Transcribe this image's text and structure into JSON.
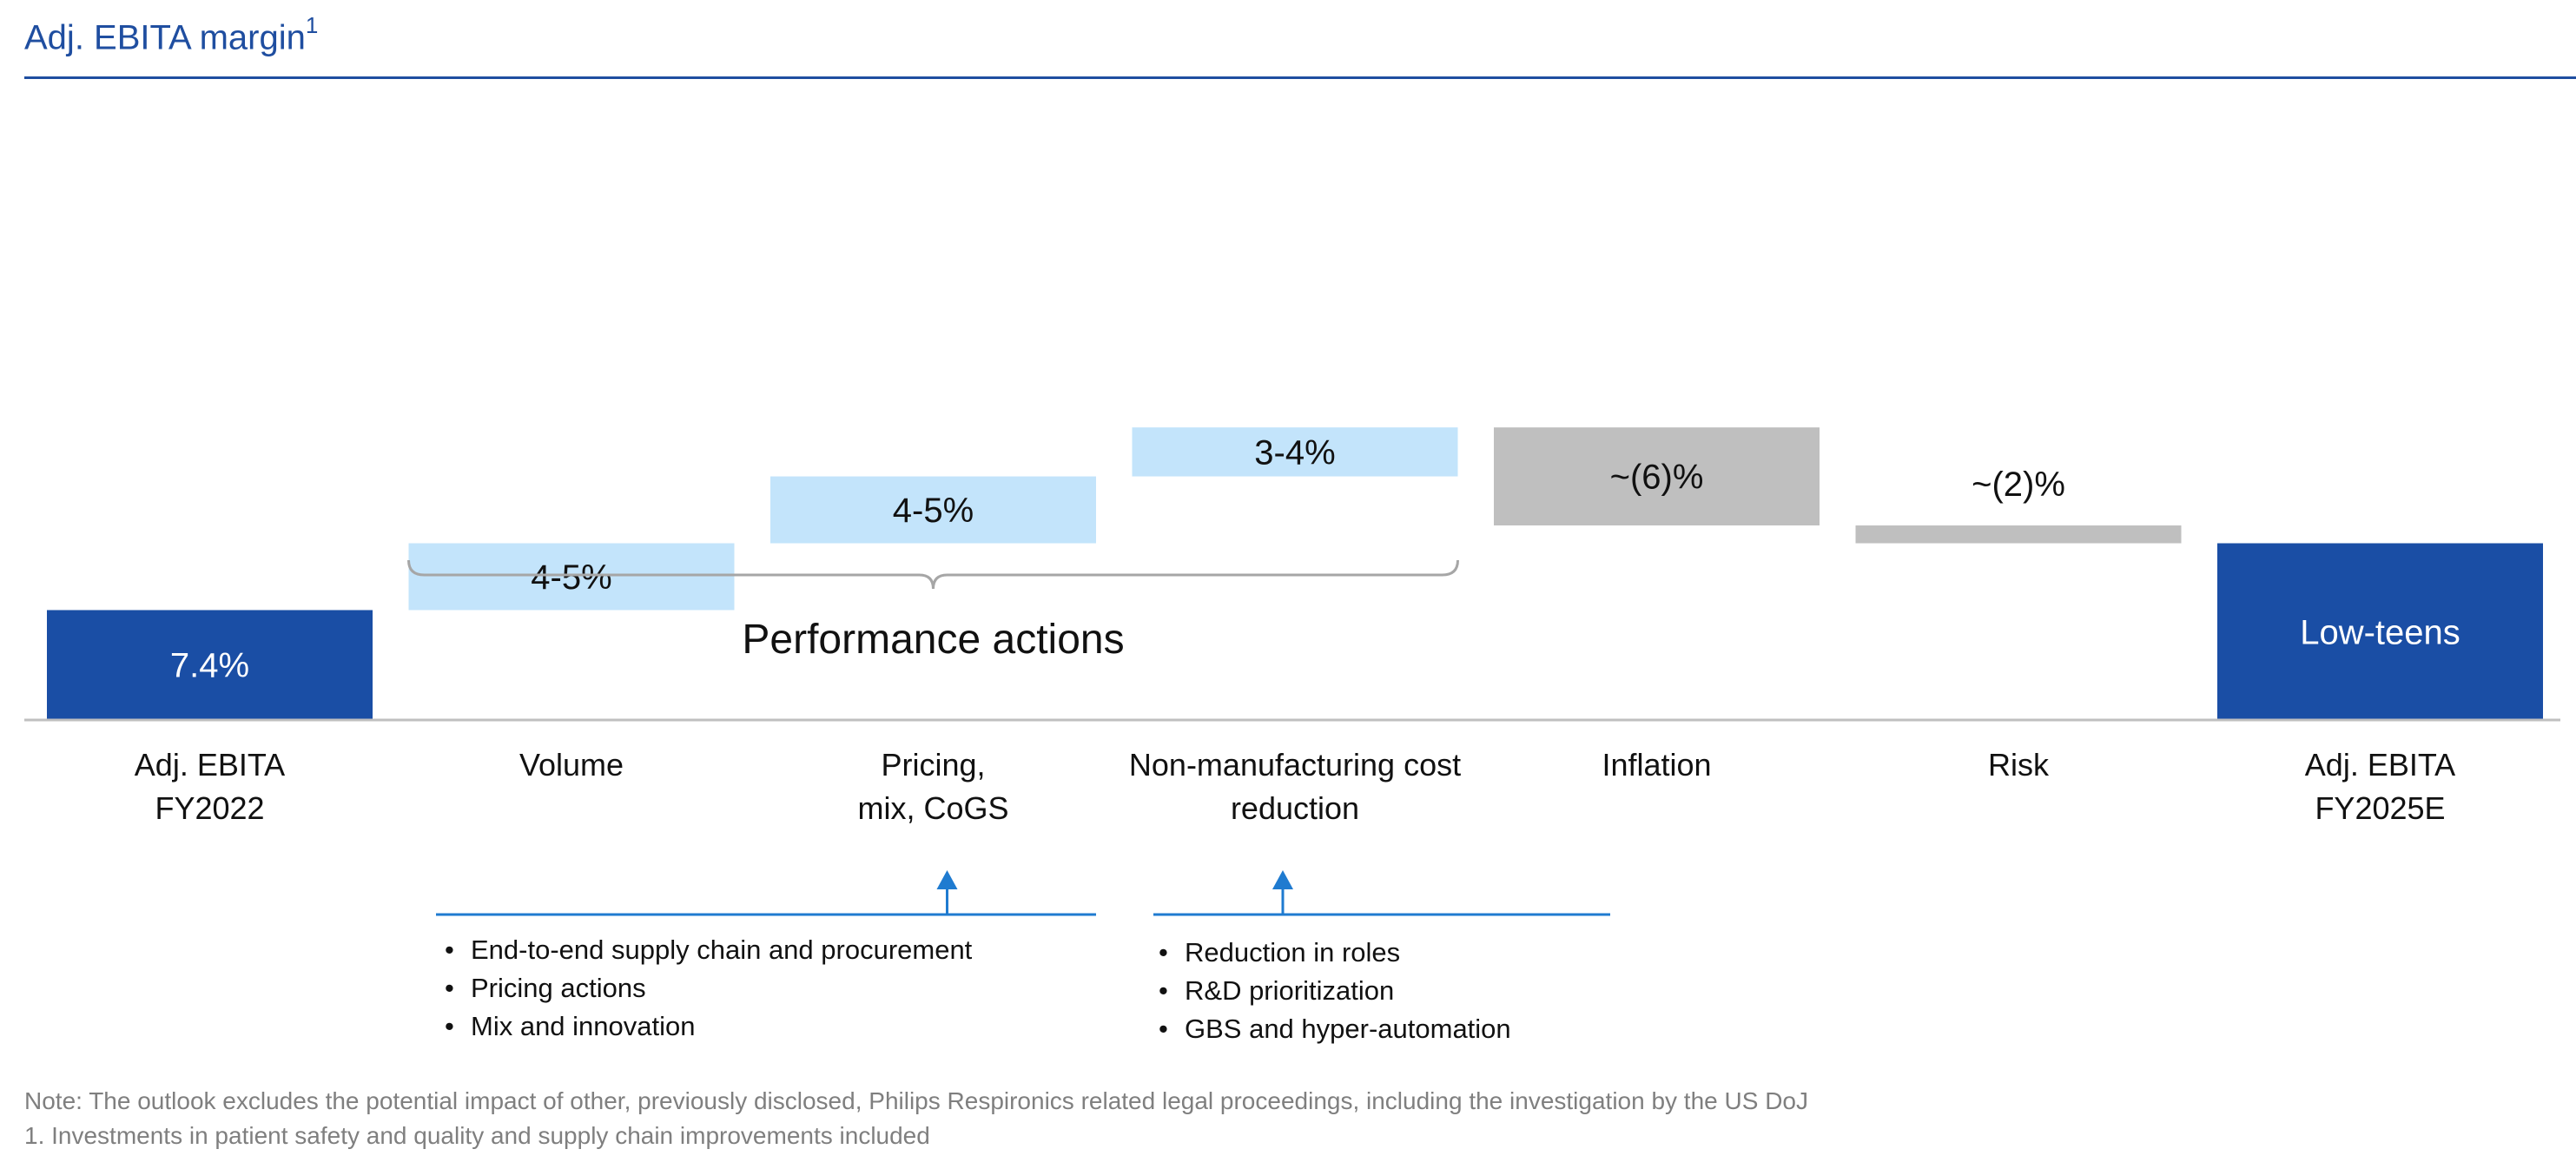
{
  "title": {
    "text": "Adj. EBITA margin",
    "footnote_marker": "1"
  },
  "colors": {
    "title": "#1f4ea0",
    "endpoint_bar": "#1a4ea5",
    "performance_bar": "#c3e4fb",
    "headwind_bar": "#bfbfbf",
    "arrow": "#1f7bd0",
    "axis": "#bfbfbf"
  },
  "chart_data": {
    "type": "bar",
    "subtype": "waterfall",
    "title": "Adj. EBITA margin",
    "categories": [
      [
        "Adj. EBITA",
        "FY2022"
      ],
      [
        "Volume"
      ],
      [
        "Pricing,",
        "mix, CoGS"
      ],
      [
        "Non-manufacturing cost",
        "reduction"
      ],
      [
        "Inflation"
      ],
      [
        "Risk"
      ],
      [
        "Adj. EBITA",
        "FY2025E"
      ]
    ],
    "bars": [
      {
        "kind": "total",
        "start": 0,
        "end": 7.4,
        "label": "7.4%",
        "label_position": "inside"
      },
      {
        "kind": "increase",
        "start": 7.4,
        "end": 11.9,
        "label": "4-5%",
        "label_position": "inside"
      },
      {
        "kind": "increase",
        "start": 11.9,
        "end": 16.4,
        "label": "4-5%",
        "label_position": "inside"
      },
      {
        "kind": "increase",
        "start": 16.4,
        "end": 19.7,
        "label": "3-4%",
        "label_position": "inside"
      },
      {
        "kind": "decrease",
        "start": 19.7,
        "end": 13.1,
        "label": "~(6)%",
        "label_position": "inside"
      },
      {
        "kind": "decrease",
        "start": 13.1,
        "end": 11.9,
        "label": "~(2)%",
        "label_position": "above"
      },
      {
        "kind": "total",
        "start": 0,
        "end": 11.9,
        "label": "Low-teens",
        "label_position": "inside"
      }
    ],
    "ylim": [
      0,
      20.5
    ],
    "grid": false,
    "bracket": {
      "label": "Performance actions",
      "from_index": 1,
      "to_index": 3
    }
  },
  "callouts": [
    {
      "items": [
        "End-to-end supply chain and procurement",
        "Pricing actions",
        "Mix and innovation"
      ]
    },
    {
      "items": [
        "Reduction in roles",
        "R&D prioritization",
        "GBS and hyper-automation"
      ]
    }
  ],
  "notes": [
    "Note: The outlook excludes the potential impact of other, previously disclosed, Philips Respironics related legal proceedings, including the investigation by the US DoJ",
    "1. Investments in patient safety and quality and supply chain improvements included"
  ]
}
